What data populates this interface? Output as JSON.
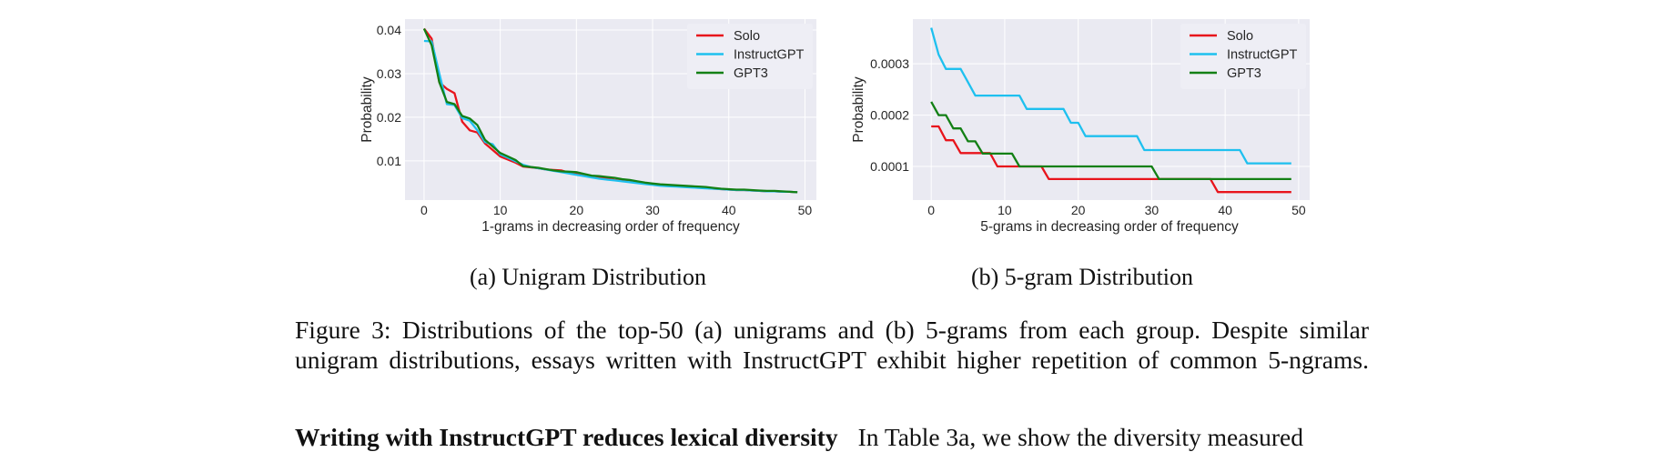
{
  "colors": {
    "background": "#eaeaf2",
    "grid": "#ffffff",
    "Solo": "#e8141c",
    "InstructGPT": "#1ec0ef",
    "GPT3": "#138015"
  },
  "chart_data": [
    {
      "type": "line",
      "xlabel": "1-grams in decreasing order of frequency",
      "ylabel": "Probability",
      "xlim": [
        -2.5,
        51.5
      ],
      "ylim": [
        0.001,
        0.0425
      ],
      "xticks": [
        0,
        10,
        20,
        30,
        40,
        50
      ],
      "xtick_labels": [
        "0",
        "10",
        "20",
        "30",
        "40",
        "50"
      ],
      "yticks": [
        0.01,
        0.02,
        0.03,
        0.04
      ],
      "ytick_labels": [
        "0.01",
        "0.02",
        "0.03",
        "0.04"
      ],
      "grid": true,
      "legend_position": "top-right",
      "x": [
        0,
        1,
        2,
        3,
        4,
        5,
        6,
        7,
        8,
        9,
        10,
        11,
        12,
        13,
        14,
        15,
        16,
        17,
        18,
        19,
        20,
        21,
        22,
        23,
        24,
        25,
        26,
        27,
        28,
        29,
        30,
        31,
        32,
        33,
        34,
        35,
        36,
        37,
        38,
        39,
        40,
        41,
        42,
        43,
        44,
        45,
        46,
        47,
        48,
        49
      ],
      "series": [
        {
          "name": "Solo",
          "values": [
            0.0403,
            0.038,
            0.028,
            0.0265,
            0.0255,
            0.019,
            0.017,
            0.0165,
            0.014,
            0.0125,
            0.011,
            0.0103,
            0.0096,
            0.0087,
            0.0085,
            0.0083,
            0.008,
            0.0079,
            0.0078,
            0.0073,
            0.007,
            0.0066,
            0.0063,
            0.0061,
            0.0059,
            0.0056,
            0.0054,
            0.0052,
            0.005,
            0.0048,
            0.0046,
            0.0044,
            0.0043,
            0.0042,
            0.0041,
            0.004,
            0.0039,
            0.0038,
            0.0036,
            0.0035,
            0.0034,
            0.0033,
            0.0033,
            0.0032,
            0.0031,
            0.003,
            0.003,
            0.0029,
            0.0029,
            0.0028
          ]
        },
        {
          "name": "InstructGPT",
          "values": [
            0.0375,
            0.0374,
            0.03,
            0.023,
            0.0228,
            0.0198,
            0.0192,
            0.017,
            0.0143,
            0.0138,
            0.0115,
            0.0107,
            0.0099,
            0.0091,
            0.0086,
            0.0083,
            0.008,
            0.0077,
            0.0074,
            0.0071,
            0.0068,
            0.0065,
            0.0062,
            0.0059,
            0.0057,
            0.0055,
            0.0053,
            0.0051,
            0.0049,
            0.0047,
            0.0045,
            0.0043,
            0.0042,
            0.0041,
            0.004,
            0.0039,
            0.0038,
            0.0037,
            0.0036,
            0.0035,
            0.0034,
            0.0033,
            0.0033,
            0.0032,
            0.0031,
            0.003,
            0.003,
            0.0029,
            0.0029,
            0.0028
          ]
        },
        {
          "name": "GPT3",
          "values": [
            0.0403,
            0.0365,
            0.028,
            0.0235,
            0.023,
            0.0203,
            0.0197,
            0.0182,
            0.0148,
            0.0133,
            0.0118,
            0.011,
            0.0102,
            0.0088,
            0.0086,
            0.0084,
            0.0081,
            0.0078,
            0.0076,
            0.0075,
            0.0074,
            0.007,
            0.0066,
            0.0065,
            0.0063,
            0.0061,
            0.0058,
            0.0056,
            0.0053,
            0.005,
            0.0048,
            0.0046,
            0.0045,
            0.0044,
            0.0043,
            0.0042,
            0.0041,
            0.004,
            0.0038,
            0.0036,
            0.0035,
            0.0034,
            0.0034,
            0.0033,
            0.0032,
            0.0031,
            0.0031,
            0.003,
            0.0029,
            0.0028
          ]
        }
      ]
    },
    {
      "type": "line",
      "xlabel": "5-grams in decreasing order of frequency",
      "ylabel": "Probability",
      "xlim": [
        -2.5,
        51.5
      ],
      "ylim": [
        3.45e-05,
        0.000387
      ],
      "xticks": [
        0,
        10,
        20,
        30,
        40,
        50
      ],
      "xtick_labels": [
        "0",
        "10",
        "20",
        "30",
        "40",
        "50"
      ],
      "yticks": [
        0.0001,
        0.0002,
        0.0003
      ],
      "ytick_labels": [
        "0.0001",
        "0.0002",
        "0.0003"
      ],
      "grid": true,
      "legend_position": "top-right",
      "x": [
        0,
        1,
        2,
        3,
        4,
        5,
        6,
        7,
        8,
        9,
        10,
        11,
        12,
        13,
        14,
        15,
        16,
        17,
        18,
        19,
        20,
        21,
        22,
        23,
        24,
        25,
        26,
        27,
        28,
        29,
        30,
        31,
        32,
        33,
        34,
        35,
        36,
        37,
        38,
        39,
        40,
        41,
        42,
        43,
        44,
        45,
        46,
        47,
        48,
        49
      ],
      "series": [
        {
          "name": "Solo",
          "values": [
            0.000178,
            0.000178,
            0.000151,
            0.000151,
            0.000126,
            0.000126,
            0.000126,
            0.000126,
            0.000126,
            0.0001,
            0.0001,
            0.0001,
            0.0001,
            0.0001,
            0.0001,
            0.0001,
            7.55e-05,
            7.55e-05,
            7.55e-05,
            7.55e-05,
            7.55e-05,
            7.55e-05,
            7.55e-05,
            7.55e-05,
            7.55e-05,
            7.55e-05,
            7.55e-05,
            7.55e-05,
            7.55e-05,
            7.55e-05,
            7.55e-05,
            7.55e-05,
            7.55e-05,
            7.55e-05,
            7.55e-05,
            7.55e-05,
            7.55e-05,
            7.55e-05,
            7.55e-05,
            5e-05,
            5e-05,
            5e-05,
            5e-05,
            5e-05,
            5e-05,
            5e-05,
            5e-05,
            5e-05,
            5e-05,
            5e-05
          ]
        },
        {
          "name": "InstructGPT",
          "values": [
            0.00037,
            0.000318,
            0.00029,
            0.00029,
            0.00029,
            0.000264,
            0.000238,
            0.000238,
            0.000238,
            0.000238,
            0.000238,
            0.000238,
            0.000238,
            0.000212,
            0.000212,
            0.000212,
            0.000212,
            0.000212,
            0.000212,
            0.000185,
            0.000185,
            0.000159,
            0.000159,
            0.000159,
            0.000159,
            0.000159,
            0.000159,
            0.000159,
            0.000159,
            0.000132,
            0.000132,
            0.000132,
            0.000132,
            0.000132,
            0.000132,
            0.000132,
            0.000132,
            0.000132,
            0.000132,
            0.000132,
            0.000132,
            0.000132,
            0.000132,
            0.000106,
            0.000106,
            0.000106,
            0.000106,
            0.000106,
            0.000106,
            0.000106
          ]
        },
        {
          "name": "GPT3",
          "values": [
            0.000226,
            0.0002,
            0.0002,
            0.000174,
            0.000174,
            0.000149,
            0.000149,
            0.000125,
            0.000125,
            0.000125,
            0.000125,
            0.000125,
            0.0001,
            0.0001,
            0.0001,
            0.0001,
            0.0001,
            0.0001,
            0.0001,
            0.0001,
            0.0001,
            0.0001,
            0.0001,
            0.0001,
            0.0001,
            0.0001,
            0.0001,
            0.0001,
            0.0001,
            0.0001,
            0.0001,
            7.55e-05,
            7.55e-05,
            7.55e-05,
            7.55e-05,
            7.55e-05,
            7.55e-05,
            7.55e-05,
            7.55e-05,
            7.55e-05,
            7.55e-05,
            7.55e-05,
            7.55e-05,
            7.55e-05,
            7.55e-05,
            7.55e-05,
            7.55e-05,
            7.55e-05,
            7.55e-05,
            7.55e-05
          ]
        }
      ]
    }
  ],
  "subcaptions": {
    "a": "(a) Unigram Distribution",
    "b": "(b) 5-gram Distribution"
  },
  "caption": {
    "line1": "Figure 3: Distributions of the top-50 (a) unigrams and (b) 5-grams from each group. Despite similar",
    "line2": "unigram distributions, essays written with InstructGPT exhibit higher repetition of common 5-ngrams."
  },
  "paragraph": {
    "heading": "Writing with InstructGPT reduces lexical diversity",
    "text": "In Table 3a, we show the diversity measured"
  }
}
